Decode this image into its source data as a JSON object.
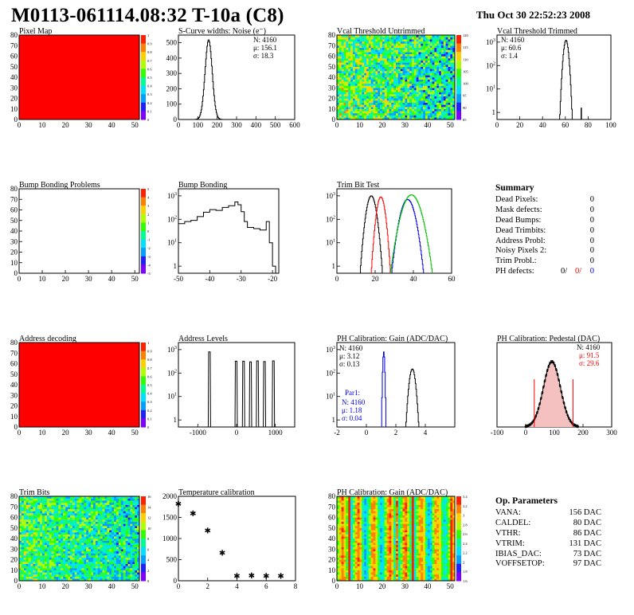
{
  "header": {
    "title": "M0113-061114.08:32 T-10a (C8)",
    "date": "Thu Oct 30 22:52:23 2008"
  },
  "colors": {
    "palette": [
      "#8000ff",
      "#2020ff",
      "#00a0ff",
      "#00e0ff",
      "#00ff90",
      "#30ff00",
      "#b0ff00",
      "#ffd000",
      "#ff8000",
      "#ff2000"
    ],
    "red": "#ff0000",
    "blue": "#0000e0",
    "green": "#00c000"
  },
  "chart_data": [
    {
      "id": "pixel-map",
      "type": "heatmap",
      "title": "Pixel Map",
      "xlim": [
        0,
        52
      ],
      "ylim": [
        0,
        80
      ],
      "xticks": [
        0,
        10,
        20,
        30,
        40,
        50
      ],
      "yticks": [
        0,
        10,
        20,
        30,
        40,
        50,
        60,
        70,
        80
      ],
      "fill": "uniform maximum (all pixels alive)",
      "zticks": [
        "1",
        "0.9",
        "0.8",
        "0.7",
        "0.6",
        "0.5",
        "0.4",
        "0.3",
        "0.2",
        "0.1",
        "0"
      ],
      "zmax": 10
    },
    {
      "id": "scurve-widths",
      "type": "histogram",
      "title": "S-Curve widths: Noise (e⁻)",
      "xlim": [
        0,
        600
      ],
      "ylim": [
        0,
        550
      ],
      "xticks": [
        0,
        100,
        200,
        300,
        400,
        500,
        600
      ],
      "yticks": [
        0,
        100,
        200,
        300,
        400,
        500
      ],
      "stats": [
        "N: 4160",
        "μ: 156.1",
        "σ: 18.3"
      ],
      "gaussian": {
        "mean": 156.1,
        "sigma": 18.3,
        "peak": 520
      }
    },
    {
      "id": "vcal-untrimmed",
      "type": "heatmap",
      "title": "Vcal Threshold Untrimmed",
      "xlim": [
        0,
        52
      ],
      "ylim": [
        0,
        80
      ],
      "xticks": [
        0,
        10,
        20,
        30,
        40,
        50
      ],
      "yticks": [
        0,
        10,
        20,
        30,
        40,
        50,
        60,
        70,
        80
      ],
      "zticks": [
        "120",
        "115",
        "110",
        "105",
        "100",
        "95",
        "90",
        "85"
      ],
      "pattern": "noise-gradient"
    },
    {
      "id": "vcal-trimmed",
      "type": "histogram",
      "title": "Vcal Threshold Trimmed",
      "log_y": true,
      "xlim": [
        0,
        100
      ],
      "ylim": [
        0.5,
        2000
      ],
      "xticks": [
        0,
        20,
        40,
        60,
        80,
        100
      ],
      "yticks": [
        1,
        10,
        100,
        1000
      ],
      "stats": [
        "N: 4160",
        "μ: 60.6",
        "σ: 1.4"
      ],
      "gaussian": {
        "mean": 60.6,
        "sigma": 1.4,
        "peak": 1200
      },
      "extra_bins": [
        [
          74,
          1
        ]
      ]
    },
    {
      "id": "bump-problems",
      "type": "heatmap",
      "title": "Bump Bonding Problems",
      "xlim": [
        0,
        52
      ],
      "ylim": [
        0,
        80
      ],
      "xticks": [
        0,
        10,
        20,
        30,
        40,
        50
      ],
      "yticks": [
        0,
        10,
        20,
        30,
        40,
        50,
        60,
        70,
        80
      ],
      "zticks": [
        "5",
        "4",
        "3",
        "2",
        "1",
        "0",
        "-1",
        "-2",
        "-3",
        "-4",
        "-5"
      ],
      "empty": true
    },
    {
      "id": "bump-bonding",
      "type": "histogram",
      "title": "Bump Bonding",
      "log_y": true,
      "xlim": [
        -50,
        -18
      ],
      "ylim": [
        0.5,
        2000
      ],
      "xticks": [
        -50,
        -40,
        -30,
        -20
      ],
      "yticks": [
        1,
        10,
        100,
        1000
      ],
      "points": [
        [
          -50,
          65
        ],
        [
          -48,
          80
        ],
        [
          -46,
          90
        ],
        [
          -44,
          130
        ],
        [
          -42,
          200
        ],
        [
          -40,
          260
        ],
        [
          -38,
          240
        ],
        [
          -36,
          320
        ],
        [
          -34,
          380
        ],
        [
          -32,
          550
        ],
        [
          -31,
          420
        ],
        [
          -30,
          210
        ],
        [
          -29,
          80
        ],
        [
          -28,
          45
        ],
        [
          -26,
          40
        ],
        [
          -24,
          35
        ],
        [
          -22,
          80
        ],
        [
          -21,
          10
        ],
        [
          -20,
          1
        ],
        [
          -19,
          0.6
        ]
      ]
    },
    {
      "id": "trim-bit-test",
      "type": "histogram",
      "title": "Trim Bit Test",
      "log_y": true,
      "xlim": [
        0,
        60
      ],
      "ylim": [
        0.5,
        2000
      ],
      "xticks": [
        0,
        20,
        40,
        60
      ],
      "yticks": [
        1,
        10,
        100,
        1000
      ],
      "series": [
        {
          "color": "black",
          "gaussian": {
            "mean": 18,
            "sigma": 1.5,
            "peak": 1000
          }
        },
        {
          "color": "red",
          "gaussian": {
            "mean": 23,
            "sigma": 1.3,
            "peak": 900
          }
        },
        {
          "color": "blue",
          "gaussian": {
            "mean": 37,
            "sigma": 2.2,
            "peak": 700
          }
        },
        {
          "color": "green",
          "gaussian": {
            "mean": 39,
            "sigma": 2.8,
            "peak": 1100
          }
        }
      ]
    },
    {
      "id": "address-decoding",
      "type": "heatmap",
      "title": "Address decoding",
      "xlim": [
        0,
        52
      ],
      "ylim": [
        0,
        80
      ],
      "xticks": [
        0,
        10,
        20,
        30,
        40,
        50
      ],
      "yticks": [
        0,
        10,
        20,
        30,
        40,
        50,
        60,
        70,
        80
      ],
      "fill": "uniform maximum (all pixels alive)",
      "zticks": [
        "1",
        "0.9",
        "0.8",
        "0.7",
        "0.6",
        "0.5",
        "0.4",
        "0.3",
        "0.2",
        "0.1",
        "0"
      ]
    },
    {
      "id": "address-levels",
      "type": "histogram",
      "title": "Address Levels",
      "log_y": true,
      "xlim": [
        -1500,
        1500
      ],
      "ylim": [
        0.5,
        2000
      ],
      "xticks": [
        -1000,
        0,
        1000
      ],
      "yticks": [
        1,
        10,
        100,
        1000
      ],
      "peaks": [
        {
          "x": -700,
          "height": 800,
          "halfwidth": 30
        },
        {
          "x": -10,
          "height": 320,
          "halfwidth": 30
        },
        {
          "x": 180,
          "height": 320,
          "halfwidth": 30
        },
        {
          "x": 360,
          "height": 300,
          "halfwidth": 30
        },
        {
          "x": 540,
          "height": 330,
          "halfwidth": 30
        },
        {
          "x": 720,
          "height": 310,
          "halfwidth": 30
        },
        {
          "x": 950,
          "height": 330,
          "halfwidth": 30
        }
      ]
    },
    {
      "id": "ph-gain-hist",
      "type": "histogram",
      "title": "PH Calibration: Gain (ADC/DAC)",
      "log_y": true,
      "xlim": [
        -2,
        6
      ],
      "ylim": [
        0.5,
        2000
      ],
      "xticks": [
        -2,
        0,
        2,
        4
      ],
      "yticks": [
        1,
        10,
        100,
        1000
      ],
      "stats": [
        "N: 4160",
        "μ: 3.12",
        "σ: 0.13"
      ],
      "stats2_header": "Par1:",
      "stats2": [
        "N: 4160",
        "μ: 1.18",
        "σ: 0.04"
      ],
      "series": [
        {
          "color": "black",
          "gaussian": {
            "mean": 3.12,
            "sigma": 0.13,
            "peak": 150
          }
        },
        {
          "color": "blue",
          "gaussian": {
            "mean": 1.18,
            "sigma": 0.04,
            "peak": 800
          }
        }
      ]
    },
    {
      "id": "ph-pedestal",
      "type": "histogram",
      "title": "PH Calibration: Pedestal (DAC)",
      "xlim": [
        -100,
        300
      ],
      "ylim": [
        0,
        80
      ],
      "xticks": [
        -100,
        0,
        100,
        200,
        300
      ],
      "yticks": [],
      "stats": [
        "N: 4160"
      ],
      "stats_red": [
        "μ: 91.5",
        "σ: 29.6"
      ],
      "gaussian": {
        "mean": 91.5,
        "sigma": 29.6,
        "peak": 62
      },
      "cut_lines": [
        30,
        165
      ]
    },
    {
      "id": "trim-bits",
      "type": "heatmap",
      "title": "Trim Bits",
      "xlim": [
        0,
        52
      ],
      "ylim": [
        0,
        80
      ],
      "xticks": [
        0,
        10,
        20,
        30,
        40,
        50
      ],
      "yticks": [
        0,
        10,
        20,
        30,
        40,
        50,
        60,
        70,
        80
      ],
      "zticks": [
        "16",
        "14",
        "12",
        "10",
        "8",
        "6",
        "4",
        "2",
        "0"
      ],
      "pattern": "noise-trim"
    },
    {
      "id": "temp-calibration",
      "type": "scatter",
      "title": "Temperature calibration",
      "xlim": [
        0,
        8
      ],
      "ylim": [
        0,
        2000
      ],
      "xticks": [
        0,
        2,
        4,
        6,
        8
      ],
      "yticks": [
        0,
        500,
        1000,
        1500,
        2000
      ],
      "points": [
        [
          0,
          1830
        ],
        [
          1,
          1600
        ],
        [
          2,
          1200
        ],
        [
          3,
          670
        ],
        [
          4,
          120
        ],
        [
          5,
          130
        ],
        [
          6,
          120
        ],
        [
          7,
          120
        ]
      ]
    },
    {
      "id": "ph-gain-map",
      "type": "heatmap",
      "title": "PH Calibration: Gain (ADC/DAC)",
      "xlim": [
        0,
        52
      ],
      "ylim": [
        0,
        80
      ],
      "xticks": [
        0,
        10,
        20,
        30,
        40,
        50
      ],
      "yticks": [
        0,
        10,
        20,
        30,
        40,
        50,
        60,
        70,
        80
      ],
      "zticks": [
        "3.4",
        "3.2",
        "3",
        "2.8",
        "2.6",
        "2.4",
        "2.2",
        "2",
        "1.8",
        "1.6"
      ],
      "pattern": "column-stripes"
    }
  ],
  "summary": {
    "title": "Summary",
    "rows": [
      {
        "label": "Dead Pixels:",
        "value": "0"
      },
      {
        "label": "Mask defects:",
        "value": "0"
      },
      {
        "label": "Dead Bumps:",
        "value": "0"
      },
      {
        "label": "Dead Trimbits:",
        "value": "0"
      },
      {
        "label": "Address Probl:",
        "value": "0"
      },
      {
        "label": "Noisy Pixels 2:",
        "value": "0"
      },
      {
        "label": "Trim Probl.:",
        "value": "0"
      }
    ],
    "ph_label": "PH defects:",
    "ph_values": [
      "0/",
      "0/",
      "0"
    ]
  },
  "op_params": {
    "title": "Op. Parameters",
    "rows": [
      {
        "label": "VANA:",
        "value": "156 DAC"
      },
      {
        "label": "CALDEL:",
        "value": "80 DAC"
      },
      {
        "label": "VTHR:",
        "value": "86 DAC"
      },
      {
        "label": "VTRIM:",
        "value": "131 DAC"
      },
      {
        "label": "IBIAS_DAC:",
        "value": "73 DAC"
      },
      {
        "label": "VOFFSETOP:",
        "value": "97 DAC"
      }
    ]
  }
}
